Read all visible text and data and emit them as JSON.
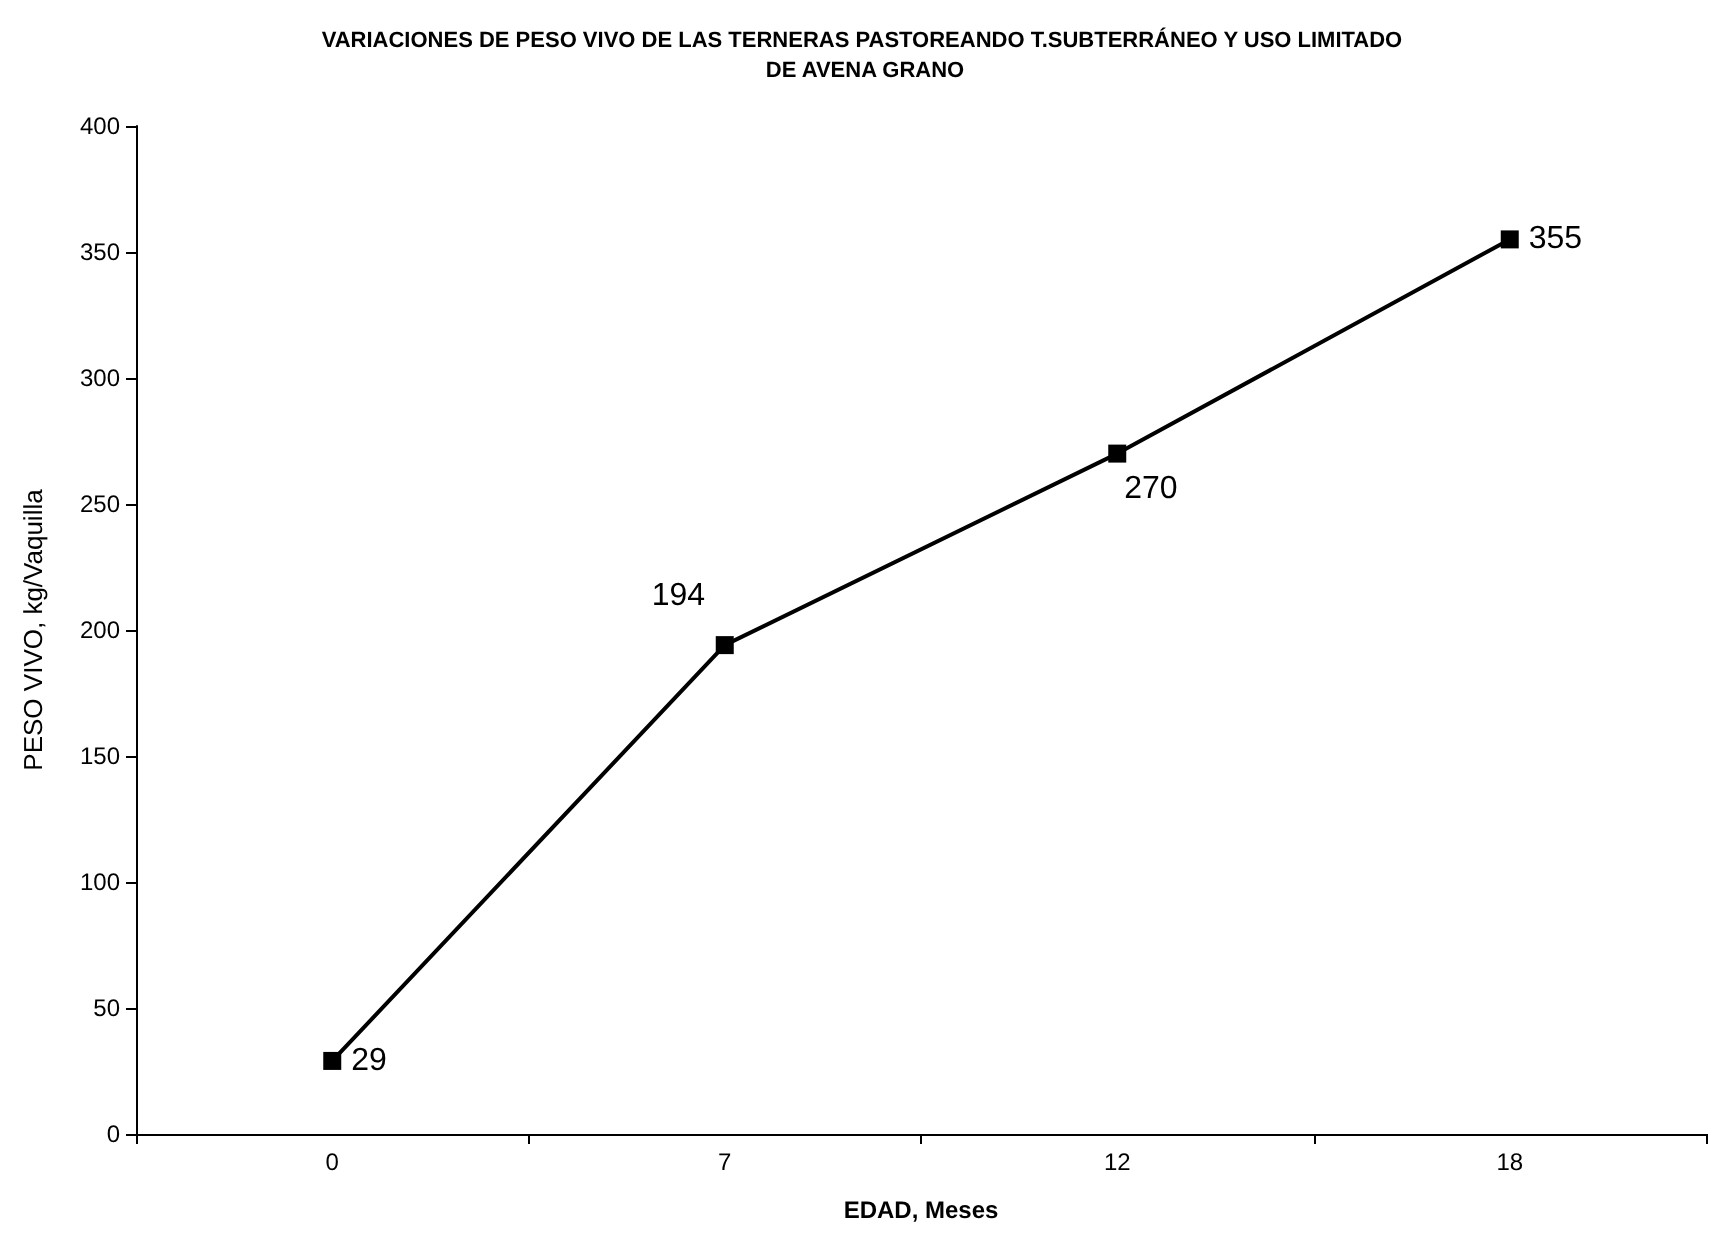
{
  "chart_data": {
    "type": "line",
    "title": "VARIACIONES DE PESO VIVO DE LAS TERNERAS PASTOREANDO T.SUBTERRÁNEO Y USO LIMITADO DE AVENA GRANO",
    "xlabel": "EDAD, Meses",
    "ylabel": "PESO VIVO, kg/Vaquilla",
    "categories": [
      "0",
      "7",
      "12",
      "18"
    ],
    "series": [
      {
        "color": "#000000",
        "values": [
          29,
          194,
          270,
          355
        ]
      }
    ],
    "ylim": [
      0,
      400
    ],
    "yticks": [
      0,
      50,
      100,
      150,
      200,
      250,
      300,
      350,
      400
    ],
    "grid": false,
    "marker": "square",
    "line_style": "solid",
    "data_labels": true
  }
}
